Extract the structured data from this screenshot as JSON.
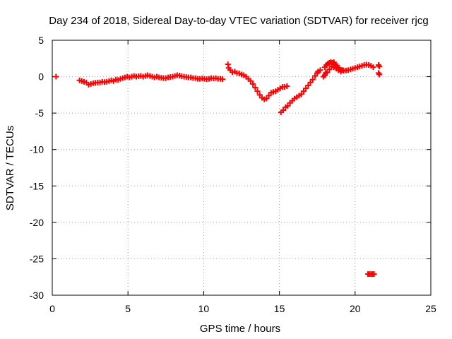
{
  "chart_data": {
    "type": "scatter",
    "title": "Day 234 of 2018, Sidereal Day-to-day VTEC variation (SDTVAR) for receiver rjcg",
    "xlabel": "GPS time / hours",
    "ylabel": "SDTVAR / TECUs",
    "xlim": [
      0,
      25
    ],
    "ylim": [
      -30,
      5
    ],
    "xticks": [
      0,
      5,
      10,
      15,
      20,
      25
    ],
    "yticks": [
      5,
      0,
      -5,
      -10,
      -15,
      -20,
      -25,
      -30
    ],
    "xtick_labels": [
      "0",
      "5",
      "10",
      "15",
      "20",
      "25"
    ],
    "ytick_labels": [
      "5",
      "0",
      "-5",
      "-10",
      "-15",
      "-20",
      "-25",
      "-30"
    ],
    "grid": true,
    "marker": "plus",
    "color": "#ff0000",
    "series": [
      {
        "name": "SDTVAR",
        "points": [
          [
            0.25,
            0.0
          ],
          [
            1.8,
            -0.5
          ],
          [
            1.95,
            -0.6
          ],
          [
            2.1,
            -0.7
          ],
          [
            2.25,
            -0.8
          ],
          [
            2.4,
            -1.1
          ],
          [
            2.55,
            -1.0
          ],
          [
            2.7,
            -0.9
          ],
          [
            2.85,
            -0.85
          ],
          [
            3.0,
            -0.8
          ],
          [
            3.15,
            -0.8
          ],
          [
            3.3,
            -0.7
          ],
          [
            3.45,
            -0.75
          ],
          [
            3.6,
            -0.7
          ],
          [
            3.75,
            -0.6
          ],
          [
            3.9,
            -0.5
          ],
          [
            4.05,
            -0.6
          ],
          [
            4.2,
            -0.4
          ],
          [
            4.35,
            -0.45
          ],
          [
            4.5,
            -0.3
          ],
          [
            4.65,
            -0.2
          ],
          [
            4.8,
            -0.1
          ],
          [
            4.95,
            0.0
          ],
          [
            5.1,
            -0.1
          ],
          [
            5.25,
            0.0
          ],
          [
            5.4,
            0.1
          ],
          [
            5.55,
            0.0
          ],
          [
            5.7,
            0.05
          ],
          [
            5.85,
            0.1
          ],
          [
            6.0,
            0.0
          ],
          [
            6.15,
            0.1
          ],
          [
            6.3,
            0.2
          ],
          [
            6.45,
            0.1
          ],
          [
            6.6,
            0.0
          ],
          [
            6.75,
            -0.1
          ],
          [
            6.9,
            0.0
          ],
          [
            7.05,
            -0.1
          ],
          [
            7.2,
            -0.15
          ],
          [
            7.35,
            -0.2
          ],
          [
            7.5,
            -0.2
          ],
          [
            7.65,
            -0.1
          ],
          [
            7.8,
            -0.05
          ],
          [
            7.95,
            0.0
          ],
          [
            8.1,
            0.1
          ],
          [
            8.25,
            0.2
          ],
          [
            8.4,
            0.15
          ],
          [
            8.55,
            0.05
          ],
          [
            8.7,
            0.0
          ],
          [
            8.85,
            -0.05
          ],
          [
            9.0,
            -0.1
          ],
          [
            9.15,
            -0.1
          ],
          [
            9.3,
            -0.2
          ],
          [
            9.45,
            -0.2
          ],
          [
            9.6,
            -0.3
          ],
          [
            9.75,
            -0.3
          ],
          [
            9.9,
            -0.25
          ],
          [
            10.05,
            -0.3
          ],
          [
            10.2,
            -0.35
          ],
          [
            10.35,
            -0.3
          ],
          [
            10.5,
            -0.2
          ],
          [
            10.65,
            -0.25
          ],
          [
            10.8,
            -0.2
          ],
          [
            10.95,
            -0.3
          ],
          [
            11.1,
            -0.3
          ],
          [
            11.25,
            -0.35
          ],
          [
            11.6,
            1.7
          ],
          [
            11.65,
            1.2
          ],
          [
            11.75,
            0.9
          ],
          [
            11.9,
            0.6
          ],
          [
            12.05,
            0.7
          ],
          [
            12.2,
            0.5
          ],
          [
            12.35,
            0.45
          ],
          [
            12.5,
            0.3
          ],
          [
            12.65,
            0.2
          ],
          [
            12.8,
            0.0
          ],
          [
            12.95,
            -0.3
          ],
          [
            13.1,
            -0.6
          ],
          [
            13.25,
            -1.0
          ],
          [
            13.4,
            -1.5
          ],
          [
            13.55,
            -2.0
          ],
          [
            13.7,
            -2.5
          ],
          [
            13.85,
            -2.9
          ],
          [
            14.0,
            -3.1
          ],
          [
            14.15,
            -3.0
          ],
          [
            14.3,
            -2.6
          ],
          [
            14.45,
            -2.2
          ],
          [
            14.6,
            -2.1
          ],
          [
            14.75,
            -2.0
          ],
          [
            14.9,
            -1.8
          ],
          [
            15.05,
            -1.6
          ],
          [
            15.2,
            -1.4
          ],
          [
            15.35,
            -1.4
          ],
          [
            15.5,
            -1.3
          ],
          [
            15.1,
            -4.9
          ],
          [
            15.25,
            -4.6
          ],
          [
            15.4,
            -4.2
          ],
          [
            15.55,
            -4.0
          ],
          [
            15.7,
            -3.6
          ],
          [
            15.85,
            -3.3
          ],
          [
            16.0,
            -3.0
          ],
          [
            16.15,
            -2.8
          ],
          [
            16.3,
            -2.6
          ],
          [
            16.45,
            -2.4
          ],
          [
            16.6,
            -2.0
          ],
          [
            16.75,
            -1.6
          ],
          [
            16.9,
            -1.2
          ],
          [
            17.05,
            -0.8
          ],
          [
            17.2,
            -0.4
          ],
          [
            17.35,
            0.1
          ],
          [
            17.5,
            0.5
          ],
          [
            17.55,
            0.7
          ],
          [
            17.7,
            0.9
          ],
          [
            18.0,
            1.3
          ],
          [
            18.1,
            1.6
          ],
          [
            18.2,
            1.8
          ],
          [
            18.3,
            1.9
          ],
          [
            18.4,
            2.0
          ],
          [
            18.5,
            1.9
          ],
          [
            18.6,
            2.0
          ],
          [
            18.7,
            1.7
          ],
          [
            18.8,
            1.5
          ],
          [
            18.9,
            1.2
          ],
          [
            19.0,
            1.0
          ],
          [
            19.1,
            0.9
          ],
          [
            19.25,
            0.8
          ],
          [
            19.4,
            0.85
          ],
          [
            19.55,
            0.9
          ],
          [
            19.7,
            1.0
          ],
          [
            19.85,
            1.1
          ],
          [
            20.0,
            1.2
          ],
          [
            20.15,
            1.3
          ],
          [
            20.3,
            1.4
          ],
          [
            20.45,
            1.5
          ],
          [
            20.6,
            1.6
          ],
          [
            20.75,
            1.65
          ],
          [
            20.9,
            1.6
          ],
          [
            21.05,
            1.5
          ],
          [
            21.2,
            1.3
          ],
          [
            18.0,
            0.2
          ],
          [
            18.15,
            0.6
          ],
          [
            18.3,
            1.0
          ],
          [
            18.45,
            1.4
          ],
          [
            18.6,
            1.3
          ],
          [
            18.75,
            1.1
          ],
          [
            18.9,
            0.9
          ],
          [
            19.05,
            0.7
          ],
          [
            19.2,
            0.9
          ],
          [
            17.9,
            0.0
          ],
          [
            18.05,
            0.5
          ],
          [
            21.55,
            1.6
          ],
          [
            21.6,
            1.4
          ],
          [
            21.55,
            0.5
          ],
          [
            21.6,
            0.3
          ],
          [
            20.85,
            -27.1
          ],
          [
            20.95,
            -27.1
          ],
          [
            21.05,
            -27.1
          ],
          [
            21.15,
            -27.1
          ],
          [
            21.25,
            -27.1
          ]
        ]
      }
    ]
  }
}
